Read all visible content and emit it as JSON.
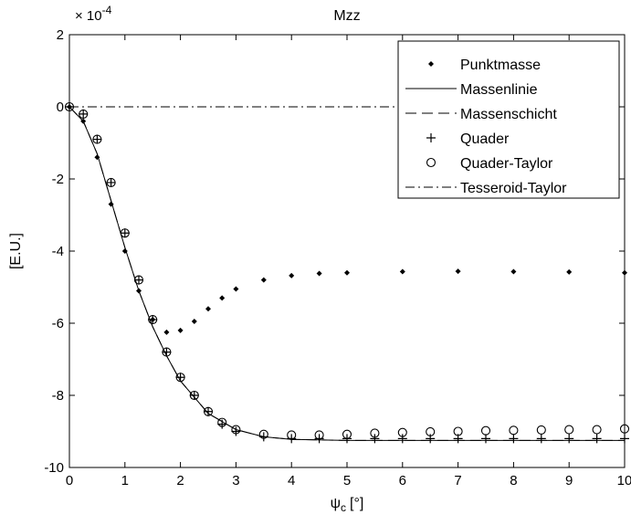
{
  "chart_data": {
    "type": "scatter",
    "title": "Mzz",
    "xlabel_symbol": "ψ",
    "xlabel_subscript": "c",
    "xlabel_unit": "[°]",
    "ylabel": "[E.U.]",
    "y_multiplier": "× 10",
    "y_multiplier_exp": "-4",
    "xlim": [
      0,
      10
    ],
    "ylim": [
      -10,
      2
    ],
    "y_scale_factor": 0.0001,
    "x_ticks": [
      0,
      1,
      2,
      3,
      4,
      5,
      6,
      7,
      8,
      9,
      10
    ],
    "y_ticks": [
      -10,
      -8,
      -6,
      -4,
      -2,
      0,
      2
    ],
    "grid": false,
    "legend_position": "top-right",
    "legend": [
      "Punktmasse",
      "Massenlinie",
      "Massenschicht",
      "Quader",
      "Quader-Taylor",
      "Tesseroid-Taylor"
    ],
    "series": [
      {
        "name": "Punktmasse",
        "marker": "dot",
        "x": [
          0.0,
          0.25,
          0.5,
          0.75,
          1.0,
          1.25,
          1.5,
          1.75,
          2.0,
          2.25,
          2.5,
          2.75,
          3.0,
          3.5,
          4.0,
          4.5,
          5.0,
          6.0,
          7.0,
          8.0,
          9.0,
          10.0
        ],
        "y": [
          0.0,
          -0.4,
          -1.4,
          -2.7,
          -4.0,
          -5.1,
          -5.9,
          -6.25,
          -6.2,
          -5.95,
          -5.6,
          -5.3,
          -5.05,
          -4.8,
          -4.68,
          -4.62,
          -4.6,
          -4.57,
          -4.56,
          -4.57,
          -4.58,
          -4.6
        ]
      },
      {
        "name": "Massenlinie",
        "line": "solid",
        "x": [
          0.0,
          0.25,
          0.5,
          0.75,
          1.0,
          1.25,
          1.5,
          1.75,
          2.0,
          2.5,
          3.0,
          3.5,
          4.0,
          5.0,
          6.0,
          7.0,
          8.0,
          9.0,
          10.0
        ],
        "y": [
          0.0,
          -0.4,
          -1.3,
          -2.6,
          -3.9,
          -5.1,
          -6.1,
          -6.9,
          -7.6,
          -8.5,
          -8.95,
          -9.15,
          -9.22,
          -9.25,
          -9.25,
          -9.25,
          -9.25,
          -9.25,
          -9.25
        ]
      },
      {
        "name": "Massenschicht",
        "line": "dashed",
        "x": [
          0.0,
          0.25,
          0.5,
          0.75,
          1.0,
          1.25,
          1.5,
          1.75,
          2.0,
          2.5,
          3.0,
          3.5,
          4.0,
          5.0,
          6.0,
          7.0,
          8.0,
          9.0,
          10.0
        ],
        "y": [
          0.0,
          -0.4,
          -1.3,
          -2.6,
          -3.9,
          -5.1,
          -6.1,
          -6.9,
          -7.6,
          -8.5,
          -8.95,
          -9.15,
          -9.22,
          -9.25,
          -9.25,
          -9.25,
          -9.25,
          -9.25,
          -9.25
        ]
      },
      {
        "name": "Quader",
        "marker": "plus",
        "x": [
          0.0,
          0.25,
          0.5,
          0.75,
          1.0,
          1.25,
          1.5,
          1.75,
          2.0,
          2.25,
          2.5,
          2.75,
          3.0,
          3.5,
          4.0,
          4.5,
          5.0,
          5.5,
          6.0,
          6.5,
          7.0,
          7.5,
          8.0,
          8.5,
          9.0,
          9.5,
          10.0
        ],
        "y": [
          0.0,
          -0.2,
          -0.9,
          -2.1,
          -3.5,
          -4.8,
          -5.9,
          -6.8,
          -7.5,
          -8.0,
          -8.45,
          -8.8,
          -9.0,
          -9.15,
          -9.2,
          -9.2,
          -9.2,
          -9.2,
          -9.2,
          -9.2,
          -9.2,
          -9.2,
          -9.2,
          -9.2,
          -9.2,
          -9.2,
          -9.2
        ]
      },
      {
        "name": "Quader-Taylor",
        "marker": "circle",
        "x": [
          0.0,
          0.25,
          0.5,
          0.75,
          1.0,
          1.25,
          1.5,
          1.75,
          2.0,
          2.25,
          2.5,
          2.75,
          3.0,
          3.5,
          4.0,
          4.5,
          5.0,
          5.5,
          6.0,
          6.5,
          7.0,
          7.5,
          8.0,
          8.5,
          9.0,
          9.5,
          10.0
        ],
        "y": [
          0.0,
          -0.2,
          -0.9,
          -2.1,
          -3.5,
          -4.8,
          -5.9,
          -6.8,
          -7.5,
          -8.0,
          -8.45,
          -8.75,
          -8.95,
          -9.08,
          -9.1,
          -9.1,
          -9.08,
          -9.05,
          -9.03,
          -9.01,
          -9.0,
          -8.98,
          -8.97,
          -8.96,
          -8.95,
          -8.95,
          -8.93
        ]
      },
      {
        "name": "Tesseroid-Taylor",
        "line": "dashdot",
        "x": [
          0.0,
          10.0
        ],
        "y": [
          0.0,
          0.0
        ]
      }
    ]
  }
}
